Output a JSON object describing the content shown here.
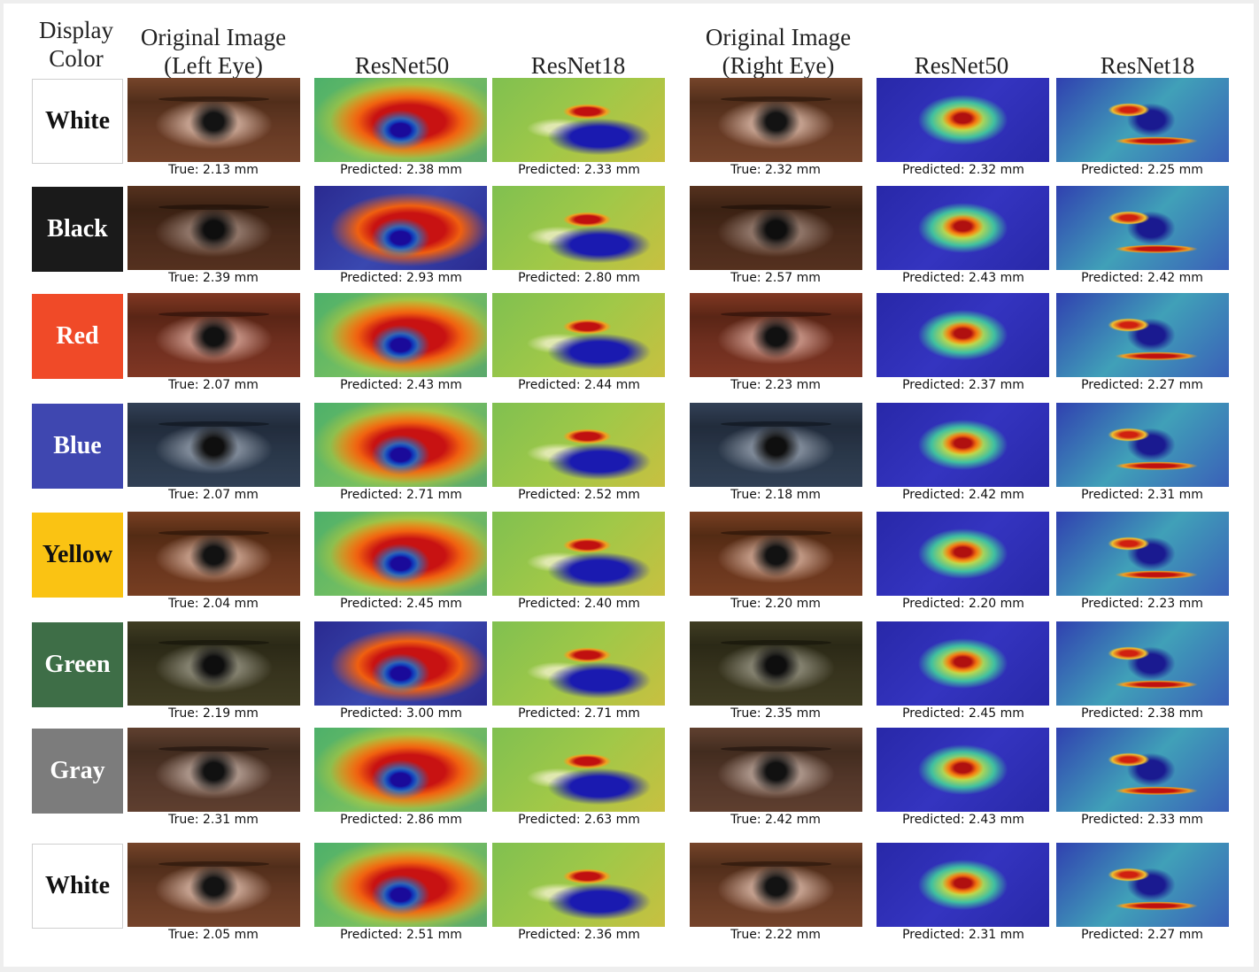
{
  "headers": {
    "display_color": [
      "Display",
      "Color"
    ],
    "original_left": [
      "Original Image",
      "(Left Eye)"
    ],
    "resnet50_left": "ResNet50",
    "resnet18_left": "ResNet18",
    "original_right": [
      "Original Image",
      "(Right Eye)"
    ],
    "resnet50_right": "ResNet50",
    "resnet18_right": "ResNet18"
  },
  "rows": [
    {
      "color": "White",
      "bg": "#ffffff",
      "fg": "#111111",
      "left_true": "True: 2.13 mm",
      "left_r50": "Predicted: 2.38 mm",
      "left_r18": "Predicted: 2.33 mm",
      "right_true": "True: 2.32 mm",
      "right_r50": "Predicted: 2.32 mm",
      "right_r18": "Predicted: 2.25 mm"
    },
    {
      "color": "Black",
      "bg": "#1a1a1a",
      "fg": "#ffffff",
      "left_true": "True: 2.39 mm",
      "left_r50": "Predicted: 2.93 mm",
      "left_r18": "Predicted: 2.80 mm",
      "right_true": "True: 2.57 mm",
      "right_r50": "Predicted: 2.43 mm",
      "right_r18": "Predicted: 2.42 mm"
    },
    {
      "color": "Red",
      "bg": "#f04a28",
      "fg": "#ffffff",
      "left_true": "True: 2.07 mm",
      "left_r50": "Predicted: 2.43 mm",
      "left_r18": "Predicted: 2.44 mm",
      "right_true": "True: 2.23 mm",
      "right_r50": "Predicted: 2.37 mm",
      "right_r18": "Predicted: 2.27 mm"
    },
    {
      "color": "Blue",
      "bg": "#3f47b0",
      "fg": "#ffffff",
      "left_true": "True: 2.07 mm",
      "left_r50": "Predicted: 2.71 mm",
      "left_r18": "Predicted: 2.52 mm",
      "right_true": "True: 2.18 mm",
      "right_r50": "Predicted: 2.42 mm",
      "right_r18": "Predicted: 2.31 mm"
    },
    {
      "color": "Yellow",
      "bg": "#fac313",
      "fg": "#111111",
      "left_true": "True: 2.04 mm",
      "left_r50": "Predicted: 2.45 mm",
      "left_r18": "Predicted: 2.40 mm",
      "right_true": "True: 2.20 mm",
      "right_r50": "Predicted: 2.20 mm",
      "right_r18": "Predicted: 2.23 mm"
    },
    {
      "color": "Green",
      "bg": "#3e6e47",
      "fg": "#ffffff",
      "left_true": "True: 2.19 mm",
      "left_r50": "Predicted: 3.00 mm",
      "left_r18": "Predicted: 2.71 mm",
      "right_true": "True: 2.35 mm",
      "right_r50": "Predicted: 2.45 mm",
      "right_r18": "Predicted: 2.38 mm"
    },
    {
      "color": "Gray",
      "bg": "#7c7c7c",
      "fg": "#ffffff",
      "left_true": "True: 2.31 mm",
      "left_r50": "Predicted: 2.86 mm",
      "left_r18": "Predicted: 2.63 mm",
      "right_true": "True: 2.42 mm",
      "right_r50": "Predicted: 2.43 mm",
      "right_r18": "Predicted: 2.33 mm"
    },
    {
      "color": "White",
      "bg": "#ffffff",
      "fg": "#111111",
      "left_true": "True: 2.05 mm",
      "left_r50": "Predicted: 2.51 mm",
      "left_r18": "Predicted: 2.36 mm",
      "right_true": "True: 2.22 mm",
      "right_r50": "Predicted: 2.31 mm",
      "right_r18": "Predicted: 2.27 mm"
    }
  ]
}
